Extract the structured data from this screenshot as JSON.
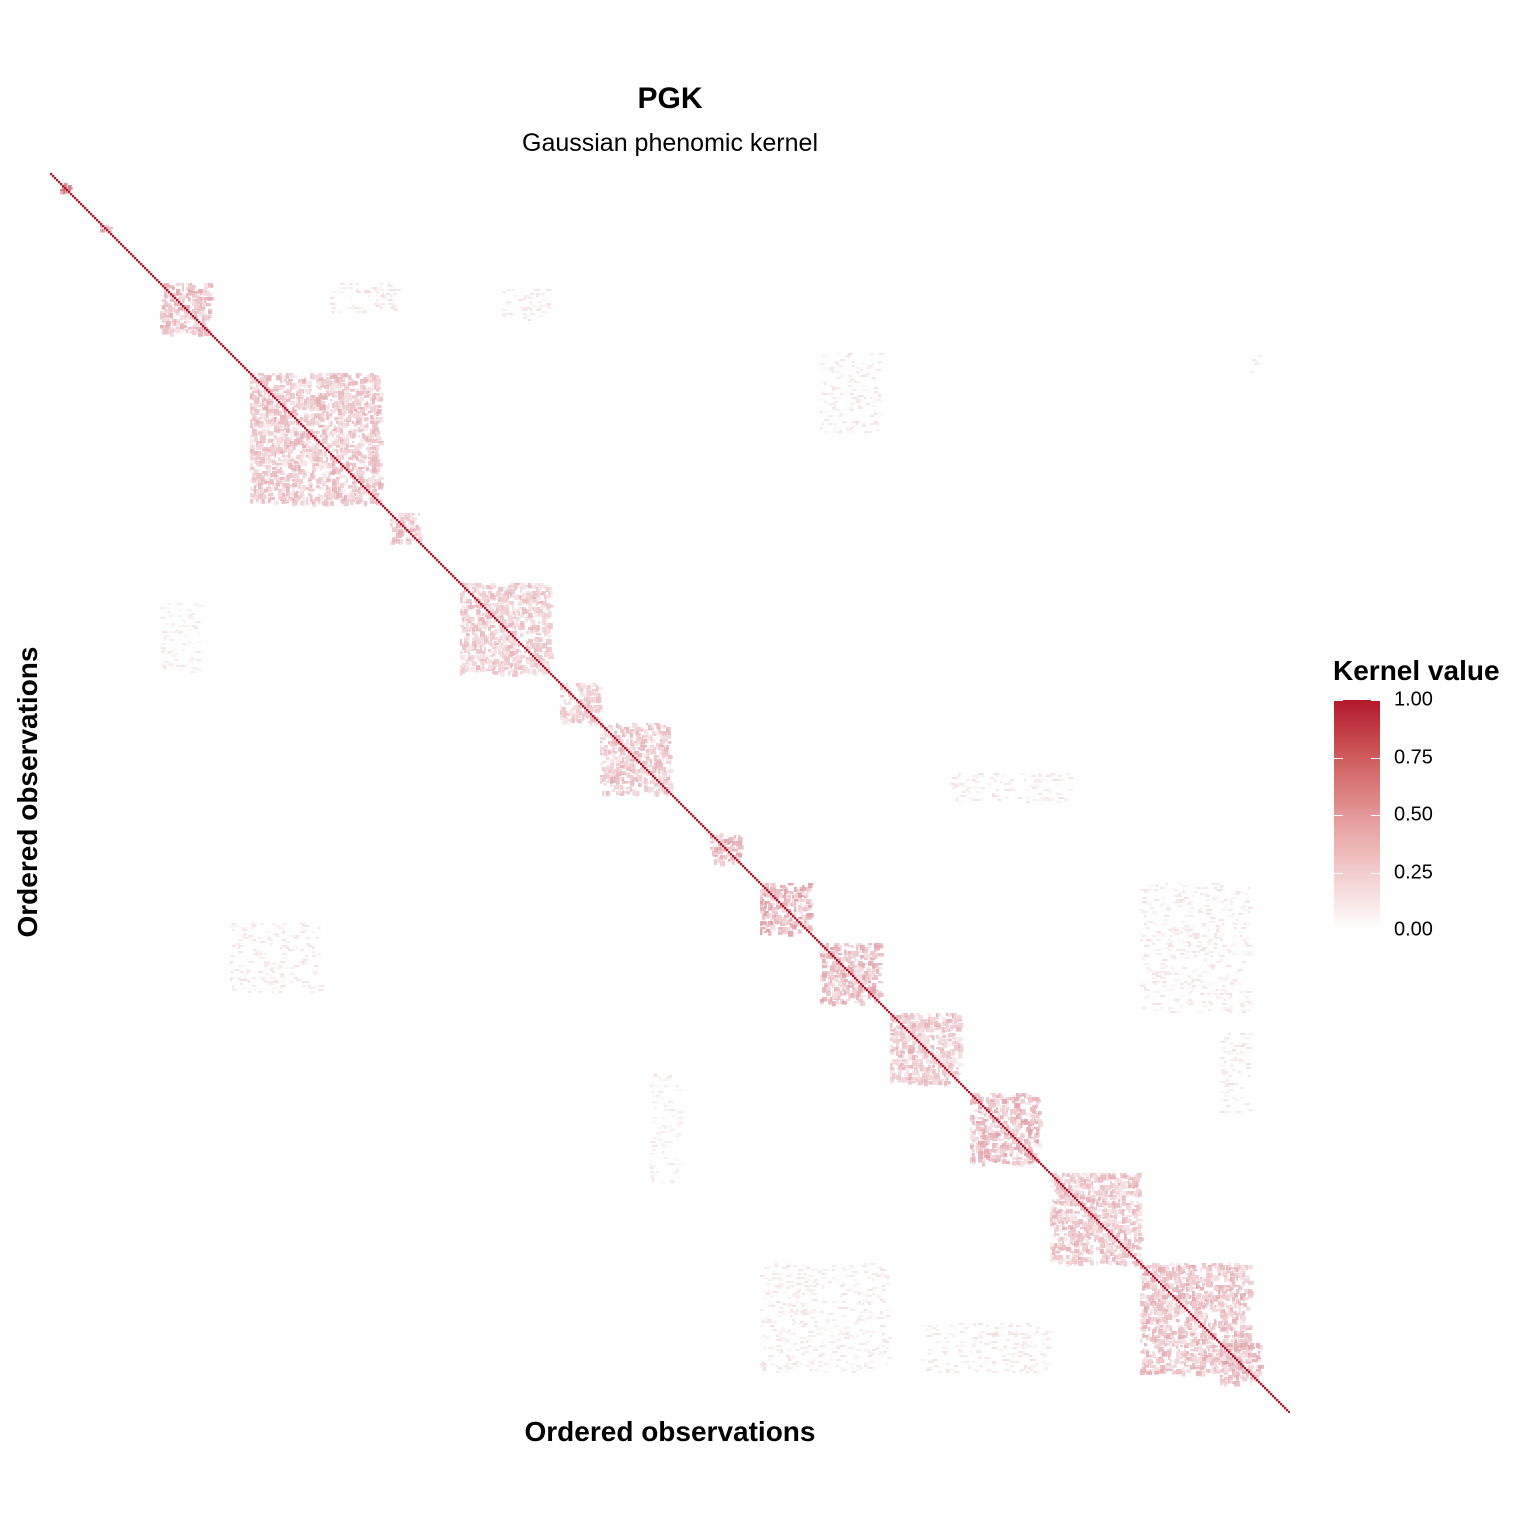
{
  "chart_data": {
    "type": "heatmap",
    "title": "PGK",
    "subtitle": "Gaussian phenomic kernel",
    "xlabel": "Ordered observations",
    "ylabel": "Ordered observations",
    "value_range": [
      0,
      1
    ],
    "color_low": "#ffffff",
    "color_high": "#b2182b",
    "diagonal_value": 1.0,
    "legend": {
      "title": "Kernel value",
      "ticks": [
        "1.00",
        "0.75",
        "0.50",
        "0.25",
        "0.00"
      ],
      "tick_values": [
        1.0,
        0.75,
        0.5,
        0.25,
        0.0
      ],
      "position": "right"
    },
    "n_observations": 620,
    "blocks": [
      {
        "start": 5,
        "end": 10,
        "value": 0.6
      },
      {
        "start": 25,
        "end": 30,
        "value": 0.5
      },
      {
        "start": 55,
        "end": 80,
        "value": 0.35
      },
      {
        "start": 100,
        "end": 165,
        "value": 0.3
      },
      {
        "start": 170,
        "end": 185,
        "value": 0.3
      },
      {
        "start": 205,
        "end": 250,
        "value": 0.28
      },
      {
        "start": 255,
        "end": 275,
        "value": 0.25
      },
      {
        "start": 275,
        "end": 310,
        "value": 0.3
      },
      {
        "start": 330,
        "end": 345,
        "value": 0.35
      },
      {
        "start": 355,
        "end": 380,
        "value": 0.4
      },
      {
        "start": 385,
        "end": 415,
        "value": 0.35
      },
      {
        "start": 420,
        "end": 455,
        "value": 0.3
      },
      {
        "start": 460,
        "end": 495,
        "value": 0.35
      },
      {
        "start": 500,
        "end": 545,
        "value": 0.3
      },
      {
        "start": 545,
        "end": 600,
        "value": 0.32
      },
      {
        "start": 585,
        "end": 605,
        "value": 0.35
      }
    ],
    "off_diagonal_clusters": [
      {
        "rows": [
          55,
          70
        ],
        "cols": [
          140,
          175
        ],
        "value": 0.15
      },
      {
        "rows": [
          58,
          75
        ],
        "cols": [
          225,
          250
        ],
        "value": 0.12
      },
      {
        "rows": [
          90,
          130
        ],
        "cols": [
          385,
          415
        ],
        "value": 0.12
      },
      {
        "rows": [
          90,
          100
        ],
        "cols": [
          600,
          605
        ],
        "value": 0.1
      },
      {
        "rows": [
          215,
          250
        ],
        "cols": [
          55,
          75
        ],
        "value": 0.1
      },
      {
        "rows": [
          375,
          410
        ],
        "cols": [
          90,
          135
        ],
        "value": 0.12
      },
      {
        "rows": [
          300,
          315
        ],
        "cols": [
          450,
          510
        ],
        "value": 0.12
      },
      {
        "rows": [
          355,
          420
        ],
        "cols": [
          545,
          600
        ],
        "value": 0.12
      },
      {
        "rows": [
          450,
          505
        ],
        "cols": [
          300,
          315
        ],
        "value": 0.1
      },
      {
        "rows": [
          545,
          600
        ],
        "cols": [
          355,
          420
        ],
        "value": 0.12
      },
      {
        "rows": [
          575,
          600
        ],
        "cols": [
          435,
          500
        ],
        "value": 0.12
      },
      {
        "rows": [
          430,
          470
        ],
        "cols": [
          585,
          600
        ],
        "value": 0.12
      }
    ]
  }
}
